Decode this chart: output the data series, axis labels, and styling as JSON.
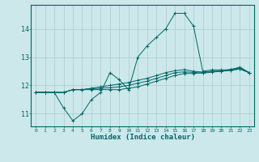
{
  "xlabel": "Humidex (Indice chaleur)",
  "ylabel": "",
  "background_color": "#cce8ea",
  "grid_color": "#aacccc",
  "line_color": "#006666",
  "x_ticks": [
    0,
    1,
    2,
    3,
    4,
    5,
    6,
    7,
    8,
    9,
    10,
    11,
    12,
    13,
    14,
    15,
    16,
    17,
    18,
    19,
    20,
    21,
    22,
    23
  ],
  "y_ticks": [
    11,
    12,
    13,
    14
  ],
  "xlim": [
    -0.5,
    23.5
  ],
  "ylim": [
    10.55,
    14.85
  ],
  "series": [
    {
      "x": [
        0,
        1,
        2,
        3,
        4,
        5,
        6,
        7,
        8,
        9,
        10,
        11,
        12,
        13,
        14,
        15,
        16,
        17,
        18,
        19,
        20,
        21,
        22,
        23
      ],
      "y": [
        11.75,
        11.75,
        11.75,
        11.2,
        10.75,
        11.0,
        11.5,
        11.75,
        12.45,
        12.2,
        11.85,
        13.0,
        13.4,
        13.7,
        14.0,
        14.55,
        14.55,
        14.1,
        12.5,
        12.55,
        12.55,
        12.55,
        12.65,
        12.45
      ]
    },
    {
      "x": [
        0,
        1,
        2,
        3,
        4,
        5,
        6,
        7,
        8,
        9,
        10,
        11,
        12,
        13,
        14,
        15,
        16,
        17,
        18,
        19,
        20,
        21,
        22,
        23
      ],
      "y": [
        11.75,
        11.75,
        11.75,
        11.75,
        11.85,
        11.85,
        11.85,
        11.85,
        11.85,
        11.85,
        11.9,
        11.95,
        12.05,
        12.15,
        12.25,
        12.35,
        12.42,
        12.42,
        12.45,
        12.5,
        12.5,
        12.55,
        12.58,
        12.45
      ]
    },
    {
      "x": [
        0,
        1,
        2,
        3,
        4,
        5,
        6,
        7,
        8,
        9,
        10,
        11,
        12,
        13,
        14,
        15,
        16,
        17,
        18,
        19,
        20,
        21,
        22,
        23
      ],
      "y": [
        11.75,
        11.75,
        11.75,
        11.75,
        11.85,
        11.85,
        11.9,
        11.95,
        12.0,
        12.05,
        12.1,
        12.18,
        12.25,
        12.35,
        12.45,
        12.52,
        12.56,
        12.5,
        12.47,
        12.5,
        12.5,
        12.57,
        12.62,
        12.45
      ]
    },
    {
      "x": [
        0,
        1,
        2,
        3,
        4,
        5,
        6,
        7,
        8,
        9,
        10,
        11,
        12,
        13,
        14,
        15,
        16,
        17,
        18,
        19,
        20,
        21,
        22,
        23
      ],
      "y": [
        11.75,
        11.75,
        11.75,
        11.75,
        11.85,
        11.85,
        11.88,
        11.9,
        11.92,
        11.95,
        12.0,
        12.08,
        12.15,
        12.25,
        12.35,
        12.45,
        12.48,
        12.46,
        12.43,
        12.47,
        12.5,
        12.53,
        12.58,
        12.45
      ]
    }
  ]
}
